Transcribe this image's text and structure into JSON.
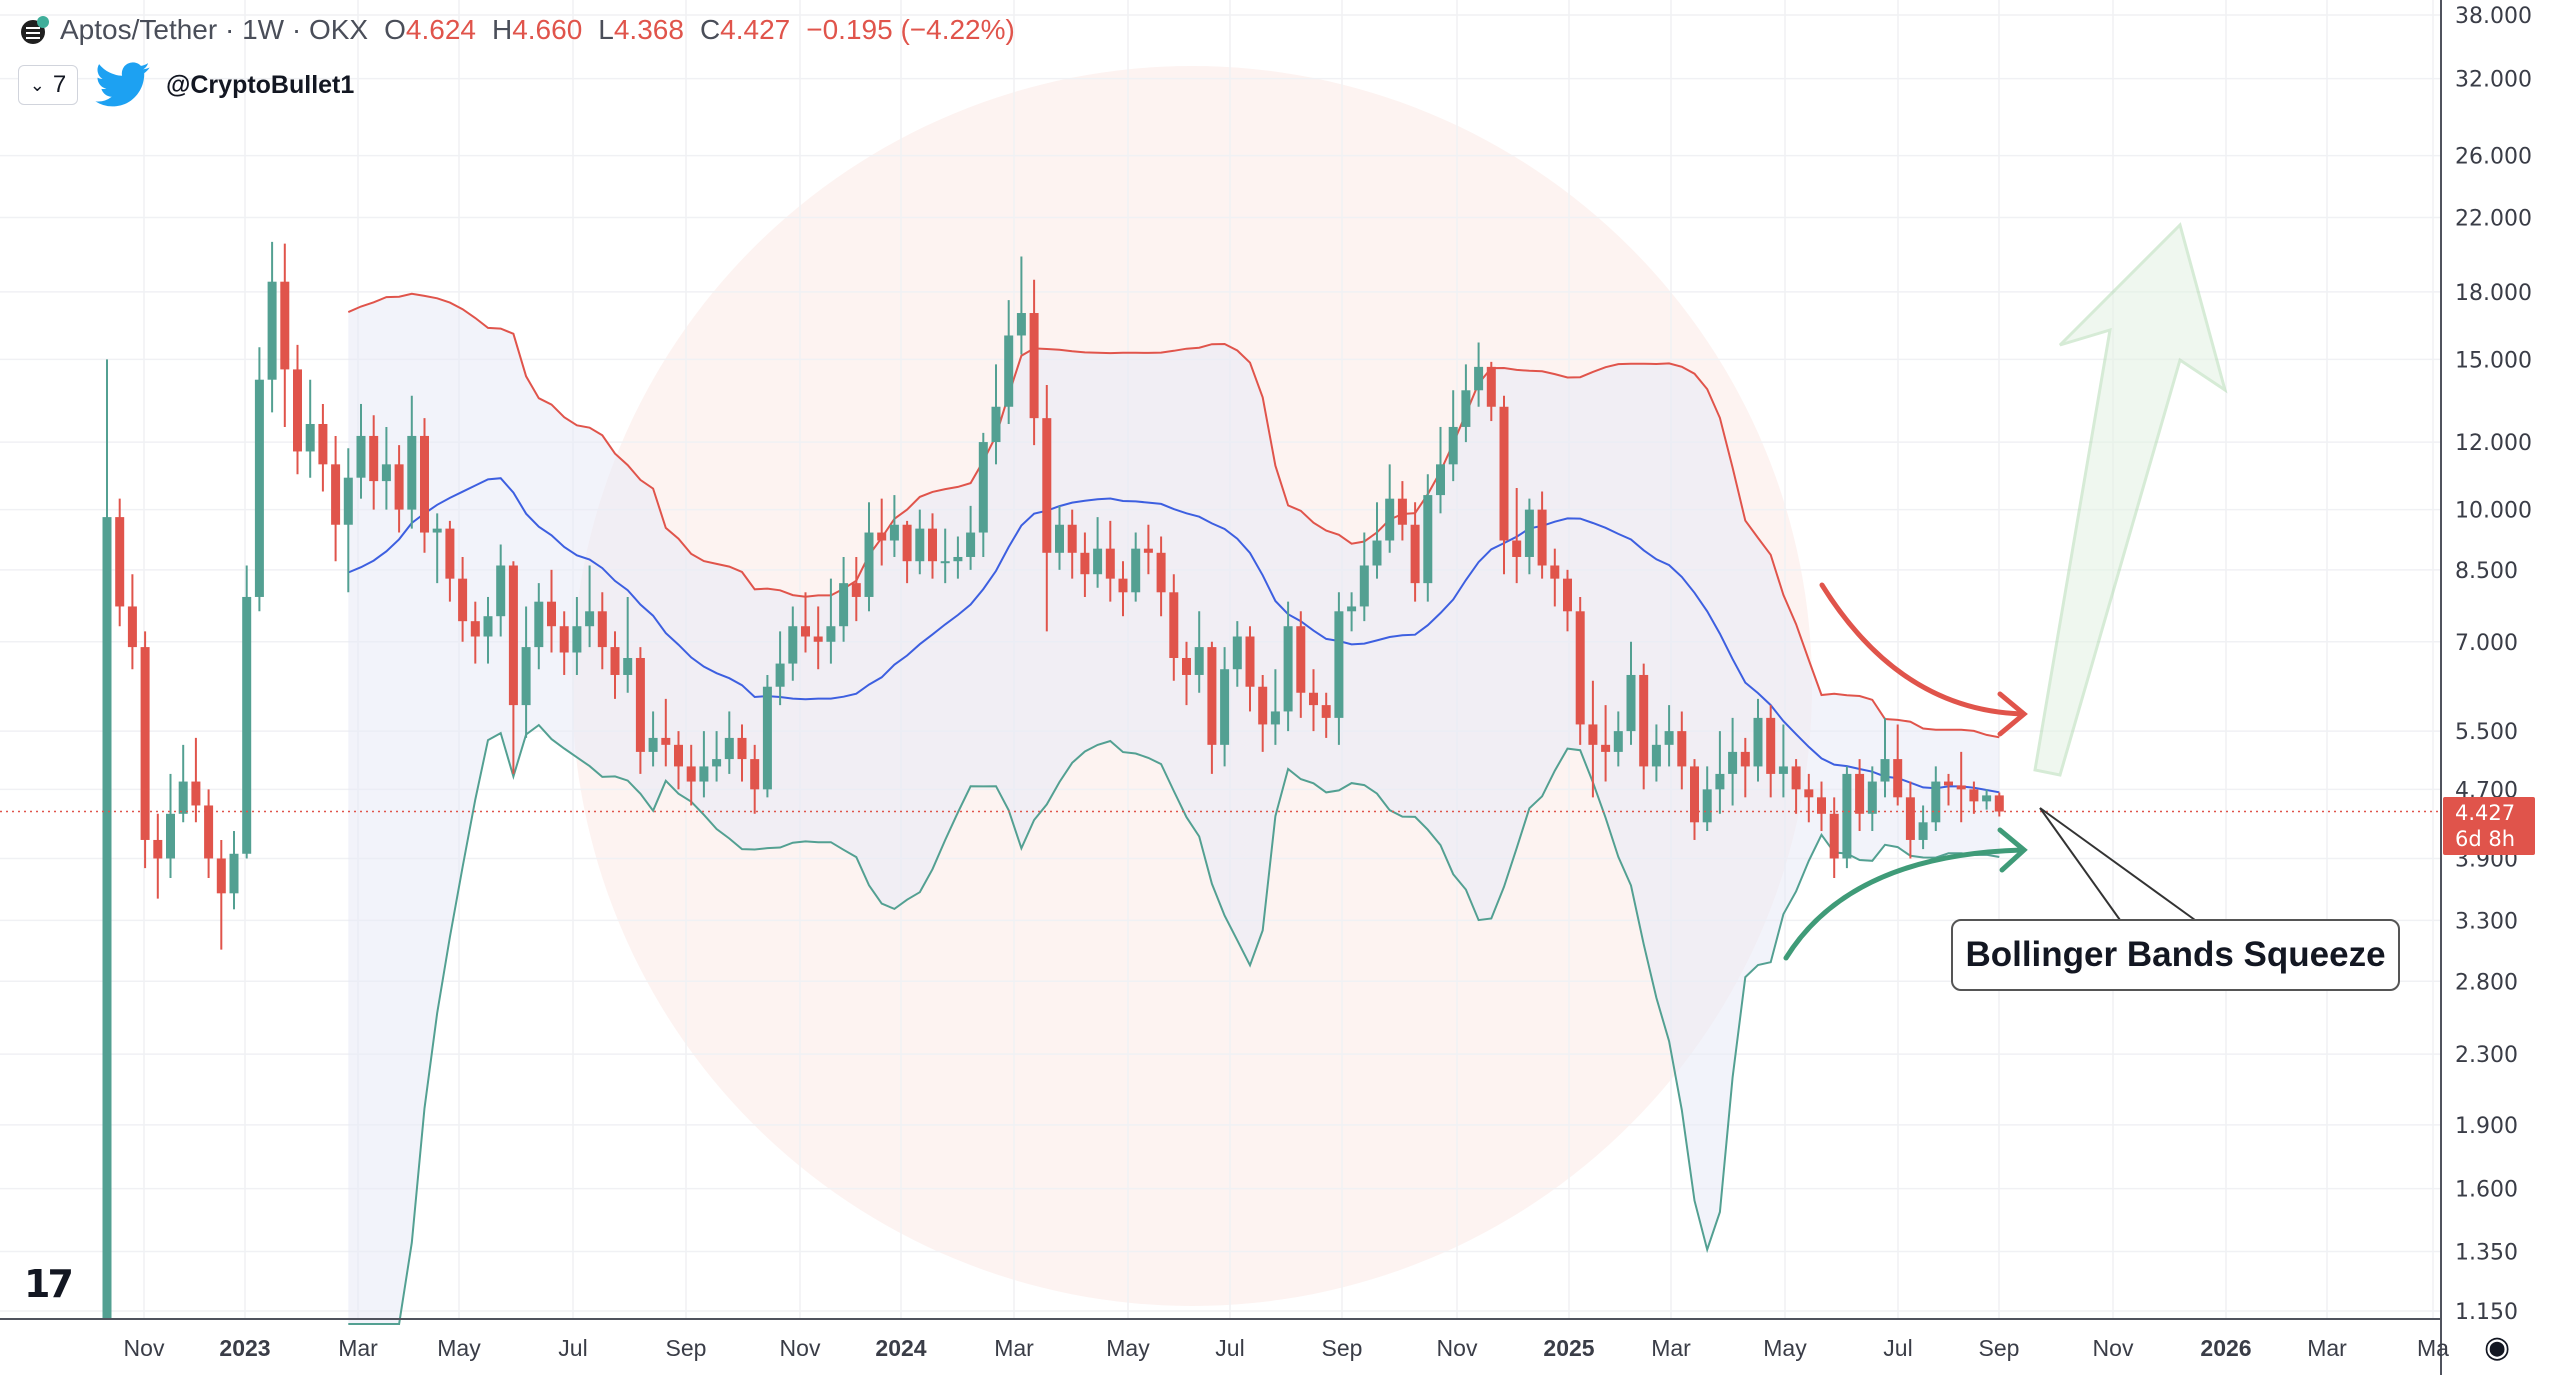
{
  "header": {
    "symbol": "Aptos/Tether · 1W · OKX",
    "open_label": "O",
    "open": "4.624",
    "high_label": "H",
    "high": "4.660",
    "low_label": "L",
    "low": "4.368",
    "close_label": "C",
    "close": "4.427",
    "change": "−0.195 (−4.22%)",
    "indicator_count": "7",
    "twitter_handle": "@CryptoBullet1"
  },
  "price_tag": {
    "price": "4.427",
    "countdown": "6d 8h"
  },
  "annotation": {
    "label": "Bollinger Bands Squeeze"
  },
  "colors": {
    "up": "#53a092",
    "down": "#e0544b",
    "upper_band": "#e0544b",
    "basis": "#3d5fe0",
    "lower_band": "#53a092",
    "accent_green": "#3f9b78"
  },
  "icons": [
    "symbol-logo-icon",
    "chevron-down-icon",
    "twitter-bird-icon",
    "tradingview-logo-icon",
    "settings-icon"
  ],
  "chart_data": {
    "type": "candlestick",
    "interval": "1W",
    "scale": "log",
    "ylim": [
      1.15,
      38
    ],
    "grid": true,
    "y_ticks": [
      "38.000",
      "32.000",
      "26.000",
      "22.000",
      "18.000",
      "15.000",
      "12.000",
      "10.000",
      "8.500",
      "7.000",
      "5.500",
      "4.700",
      "3.900",
      "3.300",
      "2.800",
      "2.300",
      "1.900",
      "1.600",
      "1.350",
      "1.150"
    ],
    "x_ticks": [
      "Nov",
      "2023",
      "Mar",
      "May",
      "Jul",
      "Sep",
      "Nov",
      "2024",
      "Mar",
      "May",
      "Jul",
      "Sep",
      "Nov",
      "2025",
      "Mar",
      "May",
      "Jul",
      "Sep",
      "Nov",
      "2026",
      "Mar",
      "Ma"
    ],
    "indicator": "Bollinger Bands (20, 2)",
    "close": [
      9.8,
      7.7,
      6.9,
      4.1,
      3.9,
      4.4,
      4.8,
      4.5,
      3.9,
      3.55,
      3.95,
      7.9,
      14.2,
      18.5,
      14.6,
      11.7,
      12.6,
      11.3,
      9.6,
      10.9,
      12.2,
      10.8,
      11.3,
      10.0,
      12.2,
      9.4,
      9.5,
      8.3,
      7.4,
      7.1,
      7.5,
      8.6,
      5.9,
      6.9,
      7.8,
      7.3,
      6.8,
      7.3,
      7.6,
      6.9,
      6.4,
      6.7,
      5.2,
      5.4,
      5.3,
      5.0,
      4.8,
      5.0,
      5.1,
      5.4,
      5.1,
      4.7,
      6.2,
      6.6,
      7.3,
      7.1,
      7.0,
      7.3,
      8.2,
      7.9,
      9.4,
      9.2,
      9.6,
      8.7,
      9.5,
      8.7,
      8.7,
      8.8,
      9.4,
      12.0,
      13.2,
      16.0,
      17.0,
      12.8,
      8.9,
      9.6,
      8.9,
      8.4,
      9.0,
      8.3,
      8.0,
      9.0,
      8.9,
      8.0,
      6.7,
      6.4,
      6.9,
      5.3,
      6.5,
      7.1,
      6.2,
      5.6,
      5.8,
      7.3,
      6.1,
      5.9,
      5.7,
      7.6,
      7.7,
      8.6,
      9.2,
      10.3,
      9.6,
      8.2,
      10.4,
      11.3,
      12.5,
      13.8,
      14.7,
      13.2,
      9.2,
      8.8,
      10.0,
      8.6,
      8.3,
      7.6,
      5.6,
      5.3,
      5.2,
      5.5,
      6.4,
      5.0,
      5.3,
      5.5,
      5.0,
      4.3,
      4.7,
      4.9,
      5.2,
      5.0,
      5.7,
      4.9,
      5.0,
      4.7,
      4.6,
      4.4,
      3.9,
      4.9,
      4.4,
      4.8,
      5.1,
      4.6,
      4.1,
      4.3,
      4.8,
      4.75,
      4.7,
      4.55,
      4.624,
      4.427
    ],
    "high": [
      15.0,
      10.3,
      8.4,
      7.2,
      4.4,
      4.9,
      5.3,
      5.4,
      4.7,
      4.1,
      4.2,
      8.6,
      15.5,
      20.6,
      20.5,
      15.6,
      14.2,
      13.3,
      12.2,
      11.8,
      13.3,
      12.9,
      12.5,
      11.9,
      13.6,
      12.8,
      9.9,
      9.7,
      8.8,
      7.8,
      7.9,
      9.1,
      8.7,
      7.7,
      8.2,
      8.5,
      7.6,
      7.9,
      8.6,
      8.0,
      7.2,
      7.9,
      6.9,
      5.8,
      6.0,
      5.5,
      5.3,
      5.5,
      5.5,
      5.8,
      5.6,
      5.3,
      6.4,
      7.2,
      7.7,
      8.0,
      7.7,
      8.3,
      8.8,
      8.8,
      10.2,
      10.3,
      10.4,
      9.7,
      10.0,
      9.9,
      9.5,
      9.3,
      10.1,
      12.3,
      14.8,
      17.6,
      19.8,
      18.6,
      14.0,
      10.1,
      10.0,
      9.4,
      9.8,
      9.7,
      8.7,
      9.4,
      9.6,
      9.3,
      8.4,
      7.0,
      7.6,
      7.0,
      6.9,
      7.4,
      7.3,
      6.4,
      6.5,
      7.8,
      7.6,
      6.5,
      6.1,
      8.0,
      8.0,
      9.4,
      10.2,
      11.3,
      10.8,
      10.2,
      11.0,
      12.5,
      13.8,
      14.8,
      15.7,
      14.9,
      13.6,
      10.6,
      10.3,
      10.5,
      9.0,
      8.5,
      7.9,
      6.3,
      5.9,
      5.8,
      7.0,
      6.6,
      5.6,
      5.9,
      5.8,
      5.1,
      5.0,
      5.5,
      5.7,
      5.4,
      6.0,
      5.9,
      5.6,
      5.1,
      4.9,
      4.8,
      4.6,
      5.0,
      5.1,
      5.0,
      5.7,
      5.6,
      4.8,
      4.5,
      5.0,
      4.9,
      5.2,
      4.8,
      4.7,
      4.66
    ],
    "low": [
      1.1,
      7.3,
      6.5,
      3.8,
      3.5,
      3.7,
      4.3,
      4.3,
      3.7,
      3.05,
      3.4,
      3.9,
      7.6,
      13.0,
      12.5,
      11.0,
      10.9,
      10.5,
      8.7,
      8.0,
      10.3,
      10.0,
      10.0,
      9.4,
      9.5,
      8.9,
      8.2,
      7.8,
      7.0,
      6.6,
      6.6,
      7.1,
      4.9,
      5.4,
      6.5,
      6.8,
      6.4,
      6.4,
      6.9,
      6.5,
      6.0,
      6.1,
      4.9,
      5.0,
      5.0,
      4.7,
      4.5,
      4.6,
      4.8,
      4.9,
      4.8,
      4.4,
      4.6,
      5.9,
      6.3,
      6.8,
      6.5,
      6.6,
      7.0,
      7.4,
      7.6,
      8.6,
      8.8,
      8.2,
      8.4,
      8.3,
      8.2,
      8.3,
      8.5,
      8.8,
      11.3,
      12.6,
      15.2,
      11.9,
      7.2,
      8.5,
      8.3,
      7.9,
      8.1,
      7.8,
      7.5,
      7.8,
      8.4,
      7.5,
      6.3,
      5.9,
      6.1,
      4.9,
      5.0,
      6.2,
      5.8,
      5.2,
      5.3,
      5.5,
      5.7,
      5.5,
      5.4,
      5.3,
      7.2,
      7.4,
      8.3,
      8.9,
      9.2,
      7.8,
      7.8,
      9.9,
      10.8,
      12.0,
      13.2,
      12.7,
      8.4,
      8.2,
      8.4,
      8.3,
      7.7,
      7.2,
      5.3,
      4.6,
      4.8,
      5.0,
      5.3,
      4.7,
      4.8,
      5.0,
      4.7,
      4.1,
      4.2,
      4.4,
      4.5,
      4.6,
      4.8,
      4.6,
      4.6,
      4.4,
      4.3,
      4.2,
      3.7,
      3.8,
      4.2,
      4.2,
      4.6,
      4.5,
      3.9,
      4.0,
      4.2,
      4.5,
      4.3,
      4.4,
      4.45,
      4.368
    ],
    "first_open": 1.1,
    "last_price": 4.427
  }
}
